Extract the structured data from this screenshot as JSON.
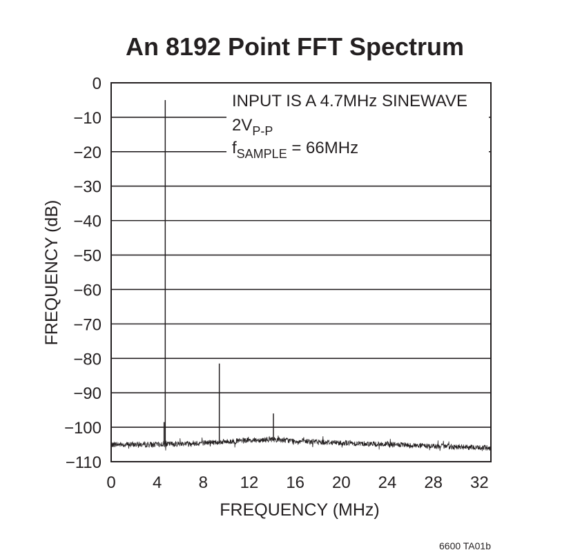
{
  "chart_data": {
    "type": "line",
    "title": "An 8192 Point FFT Spectrum",
    "xlabel": "FREQUENCY (MHz)",
    "ylabel": "FREQUENCY (dB)",
    "xlim": [
      0,
      33
    ],
    "ylim": [
      -110,
      0
    ],
    "xticks": [
      0,
      4,
      8,
      12,
      16,
      20,
      24,
      28,
      32
    ],
    "yticks": [
      0,
      -10,
      -20,
      -30,
      -40,
      -50,
      -60,
      -70,
      -80,
      -90,
      -100,
      -110
    ],
    "ytick_labels": [
      "0",
      "−10",
      "−20",
      "−30",
      "−40",
      "−50",
      "−60",
      "−70",
      "−80",
      "−90",
      "−100",
      "−110"
    ],
    "grid": "horizontal",
    "annotation": {
      "line1": "INPUT IS A 4.7MHz SINEWAVE",
      "line2_main": "2V",
      "line2_sub": "P-P",
      "line3_pre": "f",
      "line3_sub": "SAMPLE",
      "line3_post": " = 66MHz"
    },
    "series": [
      {
        "noise_floor_profile": [
          [
            0,
            -105
          ],
          [
            4,
            -105
          ],
          [
            8,
            -104.5
          ],
          [
            11,
            -104
          ],
          [
            14,
            -103.5
          ],
          [
            16,
            -104
          ],
          [
            20,
            -104.5
          ],
          [
            24,
            -105
          ],
          [
            28,
            -105.5
          ],
          [
            33,
            -106
          ]
        ],
        "noise_amplitude": 0.8,
        "spurs": [
          {
            "x": 4.7,
            "y": -5
          },
          {
            "x": 4.6,
            "y": -98.5
          },
          {
            "x": 9.4,
            "y": -81.5
          },
          {
            "x": 14.1,
            "y": -96
          }
        ]
      }
    ],
    "footnote": "6600 TA01b"
  }
}
